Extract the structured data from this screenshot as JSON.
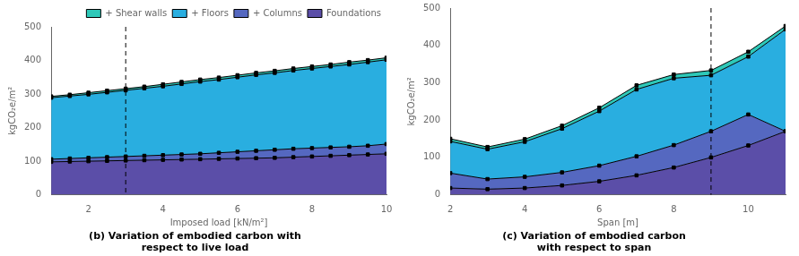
{
  "chart_data": [
    {
      "type": "area",
      "stacked": true,
      "title": "(b) Variation of embodied carbon with\nrespect to live load",
      "x": [
        1,
        1.5,
        2,
        2.5,
        3,
        3.5,
        4,
        4.5,
        5,
        5.5,
        6,
        6.5,
        7,
        7.5,
        8,
        8.5,
        9,
        9.5,
        10
      ],
      "series": [
        {
          "name": "Foundations",
          "color": "#5b4ea8",
          "values": [
            98,
            99,
            100,
            101,
            102,
            103,
            104,
            105,
            106,
            107,
            108,
            109,
            110,
            112,
            114,
            116,
            118,
            120,
            122
          ]
        },
        {
          "name": "+ Columns",
          "color": "#5568c0",
          "values": [
            8,
            9,
            10,
            11,
            12,
            13,
            14,
            15,
            16,
            18,
            20,
            22,
            24,
            25,
            25,
            25,
            25,
            26,
            29
          ]
        },
        {
          "name": "+ Floors",
          "color": "#29aee0",
          "values": [
            183,
            186,
            189,
            193,
            197,
            201,
            205,
            210,
            215,
            218,
            222,
            226,
            229,
            233,
            237,
            241,
            245,
            249,
            251
          ]
        },
        {
          "name": "+ Shear walls",
          "color": "#2ec8b8",
          "values": [
            4,
            4,
            5,
            5,
            5,
            5,
            6,
            6,
            6,
            6,
            6,
            6,
            6,
            6,
            6,
            6,
            7,
            6,
            6
          ]
        }
      ],
      "xlim": [
        1,
        10
      ],
      "ylim": [
        0,
        500
      ],
      "xticks": [
        2,
        4,
        6,
        8,
        10
      ],
      "yticks": [
        0,
        100,
        200,
        300,
        400,
        500
      ],
      "xlabel": "Imposed load [kN/m²]",
      "ylabel": "kgCO₂e/m²",
      "vline": 3.0,
      "legend": "upper right",
      "grid": false,
      "marker": "square"
    },
    {
      "type": "area",
      "stacked": true,
      "title": "(c) Variation of embodied carbon\nwith respect to span",
      "x": [
        2,
        3,
        4,
        5,
        6,
        7,
        8,
        9,
        10,
        11
      ],
      "series": [
        {
          "name": "Foundations",
          "color": "#5b4ea8",
          "values": [
            18,
            15,
            18,
            25,
            36,
            52,
            73,
            100,
            132,
            170
          ]
        },
        {
          "name": "+ Columns",
          "color": "#5568c0",
          "values": [
            40,
            27,
            30,
            35,
            42,
            51,
            60,
            70,
            83,
            0
          ]
        },
        {
          "name": "+ Floors",
          "color": "#29aee0",
          "values": [
            85,
            80,
            94,
            117,
            146,
            179,
            179,
            150,
            155,
            273
          ]
        },
        {
          "name": "+ Shear walls",
          "color": "#2ec8b8",
          "values": [
            7,
            6,
            7,
            8,
            9,
            11,
            10,
            13,
            13,
            9
          ]
        }
      ],
      "xlim": [
        2,
        11
      ],
      "ylim": [
        0,
        500
      ],
      "xticks": [
        2,
        4,
        6,
        8,
        10
      ],
      "yticks": [
        0,
        100,
        200,
        300,
        400,
        500
      ],
      "xlabel": "Span [m]",
      "ylabel": "kgCO₂e/m²",
      "vline": 9.0,
      "grid": false,
      "marker": "square"
    }
  ]
}
